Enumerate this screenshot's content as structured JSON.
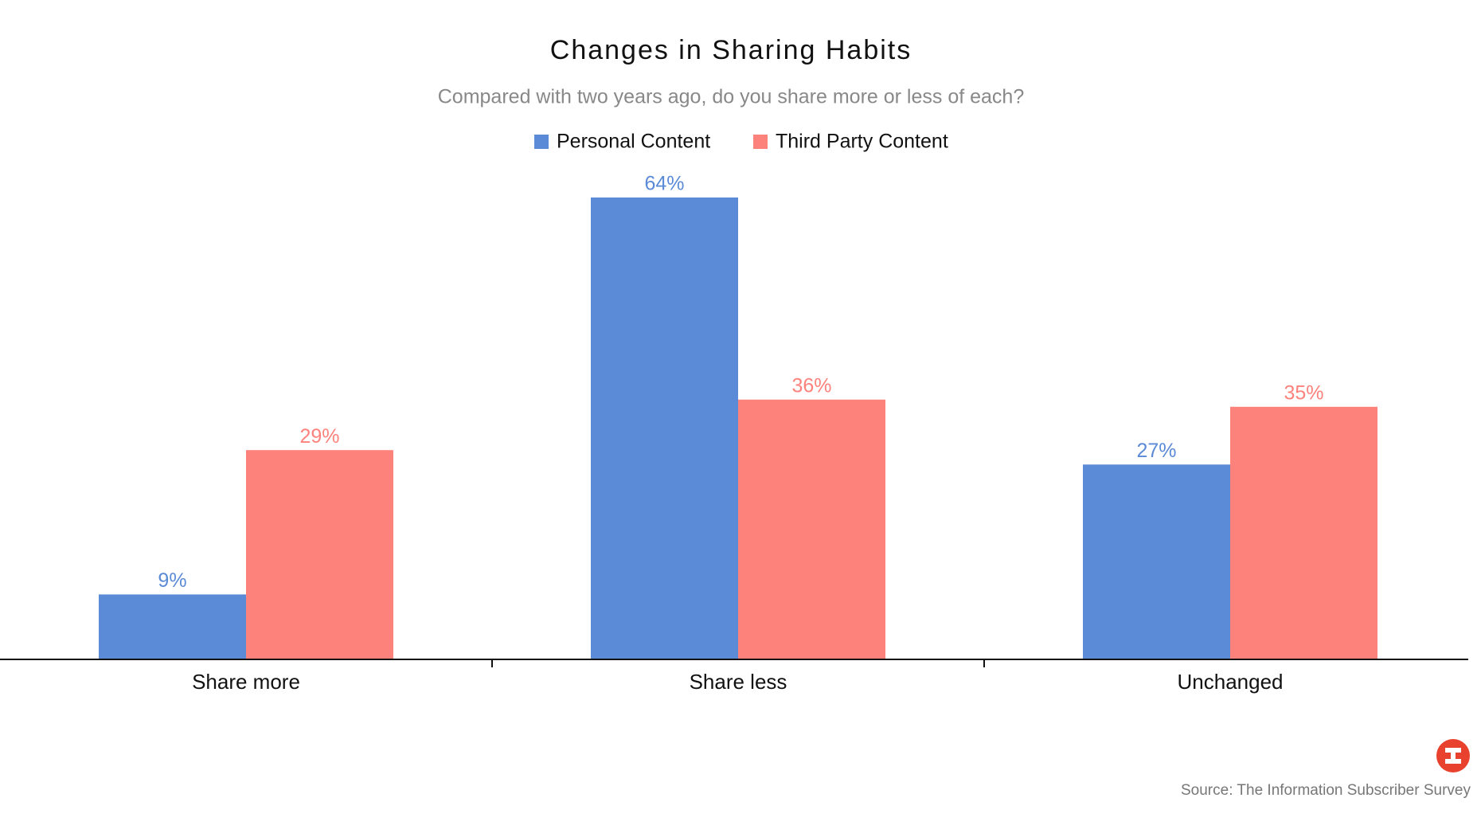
{
  "chart_data": {
    "type": "bar",
    "title": "Changes in Sharing Habits",
    "subtitle": "Compared with two years ago, do you share more or less of each?",
    "categories": [
      "Share more",
      "Share less",
      "Unchanged"
    ],
    "series": [
      {
        "name": "Personal Content",
        "color": "#5b8ad7",
        "values": [
          9,
          64,
          27
        ],
        "value_labels": [
          "9%",
          "64%",
          "27%"
        ]
      },
      {
        "name": "Third Party Content",
        "color": "#fe827c",
        "values": [
          29,
          36,
          35
        ],
        "value_labels": [
          "29%",
          "36%",
          "35%"
        ]
      }
    ],
    "source": "Source: The Information Subscriber Survey"
  }
}
